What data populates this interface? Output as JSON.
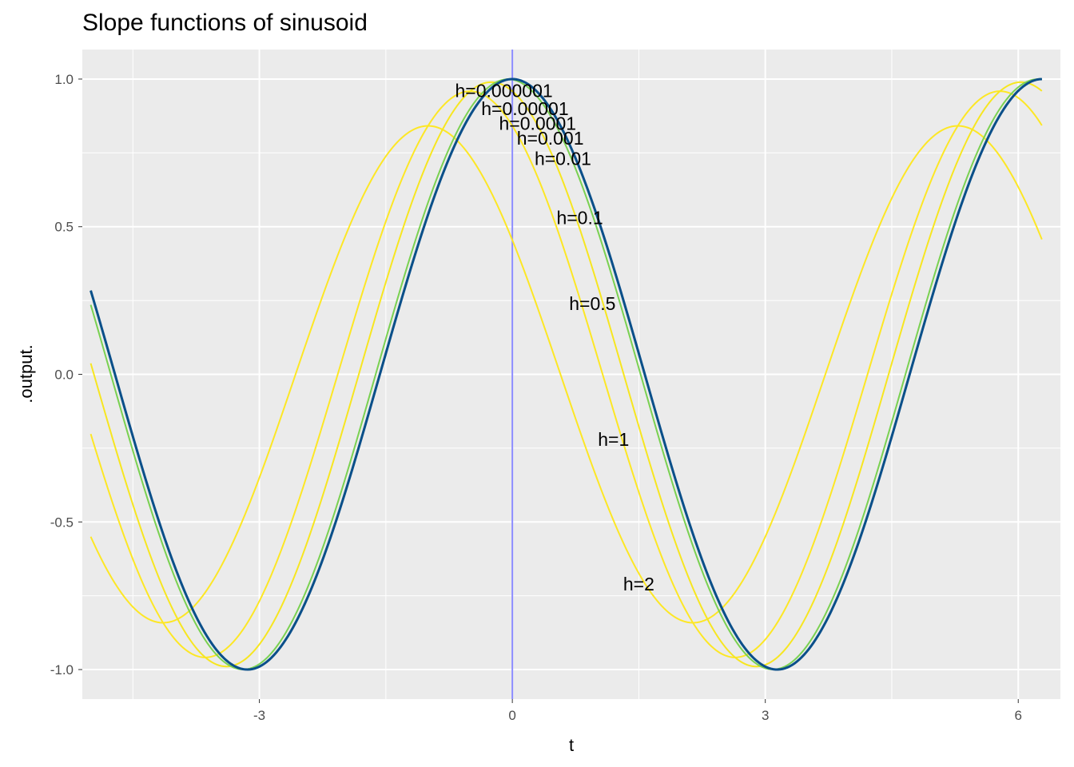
{
  "chart_data": {
    "type": "line",
    "title": "Slope functions of sinusoid",
    "xlabel": "t",
    "ylabel": ".output.",
    "xlim": [
      -5.1,
      6.5
    ],
    "ylim": [
      -1.1,
      1.1
    ],
    "x_range": [
      -5,
      6.28
    ],
    "x_ticks": [
      -3,
      0,
      3,
      6
    ],
    "x_tick_labels": [
      "-3",
      "0",
      "3",
      "6"
    ],
    "y_ticks": [
      -1.0,
      -0.5,
      0.0,
      0.5,
      1.0
    ],
    "y_tick_labels": [
      "-1.0",
      "-0.5",
      "0.0",
      "0.5",
      "1.0"
    ],
    "grid": true,
    "vline": {
      "x": 0,
      "color": "#8c8cff"
    },
    "function": "(sin(t+h) - sin(t)) / h",
    "series": [
      {
        "h": 2,
        "color": "#FDE725"
      },
      {
        "h": 1,
        "color": "#FDE725"
      },
      {
        "h": 0.5,
        "color": "#F7E620"
      },
      {
        "h": 0.1,
        "color": "#7AD151"
      },
      {
        "h": 0.01,
        "color": "#4AC16D"
      },
      {
        "h": 0.001,
        "color": "#2FB47C"
      },
      {
        "h": 0.0001,
        "color": "#1F9E89"
      },
      {
        "h": 1e-05,
        "color": "#1F8A8C"
      },
      {
        "h": 1e-06,
        "color": "#0B4F8A"
      }
    ],
    "labels": [
      {
        "text": "h=0.000001",
        "x": -0.1,
        "y": 0.96
      },
      {
        "text": "h=0.00001",
        "x": 0.15,
        "y": 0.9
      },
      {
        "text": "h=0.0001",
        "x": 0.3,
        "y": 0.85
      },
      {
        "text": "h=0.001",
        "x": 0.45,
        "y": 0.8
      },
      {
        "text": "h=0.01",
        "x": 0.6,
        "y": 0.73
      },
      {
        "text": "h=0.1",
        "x": 0.8,
        "y": 0.53
      },
      {
        "text": "h=0.5",
        "x": 0.95,
        "y": 0.24
      },
      {
        "text": "h=1",
        "x": 1.2,
        "y": -0.22
      },
      {
        "text": "h=2",
        "x": 1.5,
        "y": -0.71
      }
    ]
  }
}
